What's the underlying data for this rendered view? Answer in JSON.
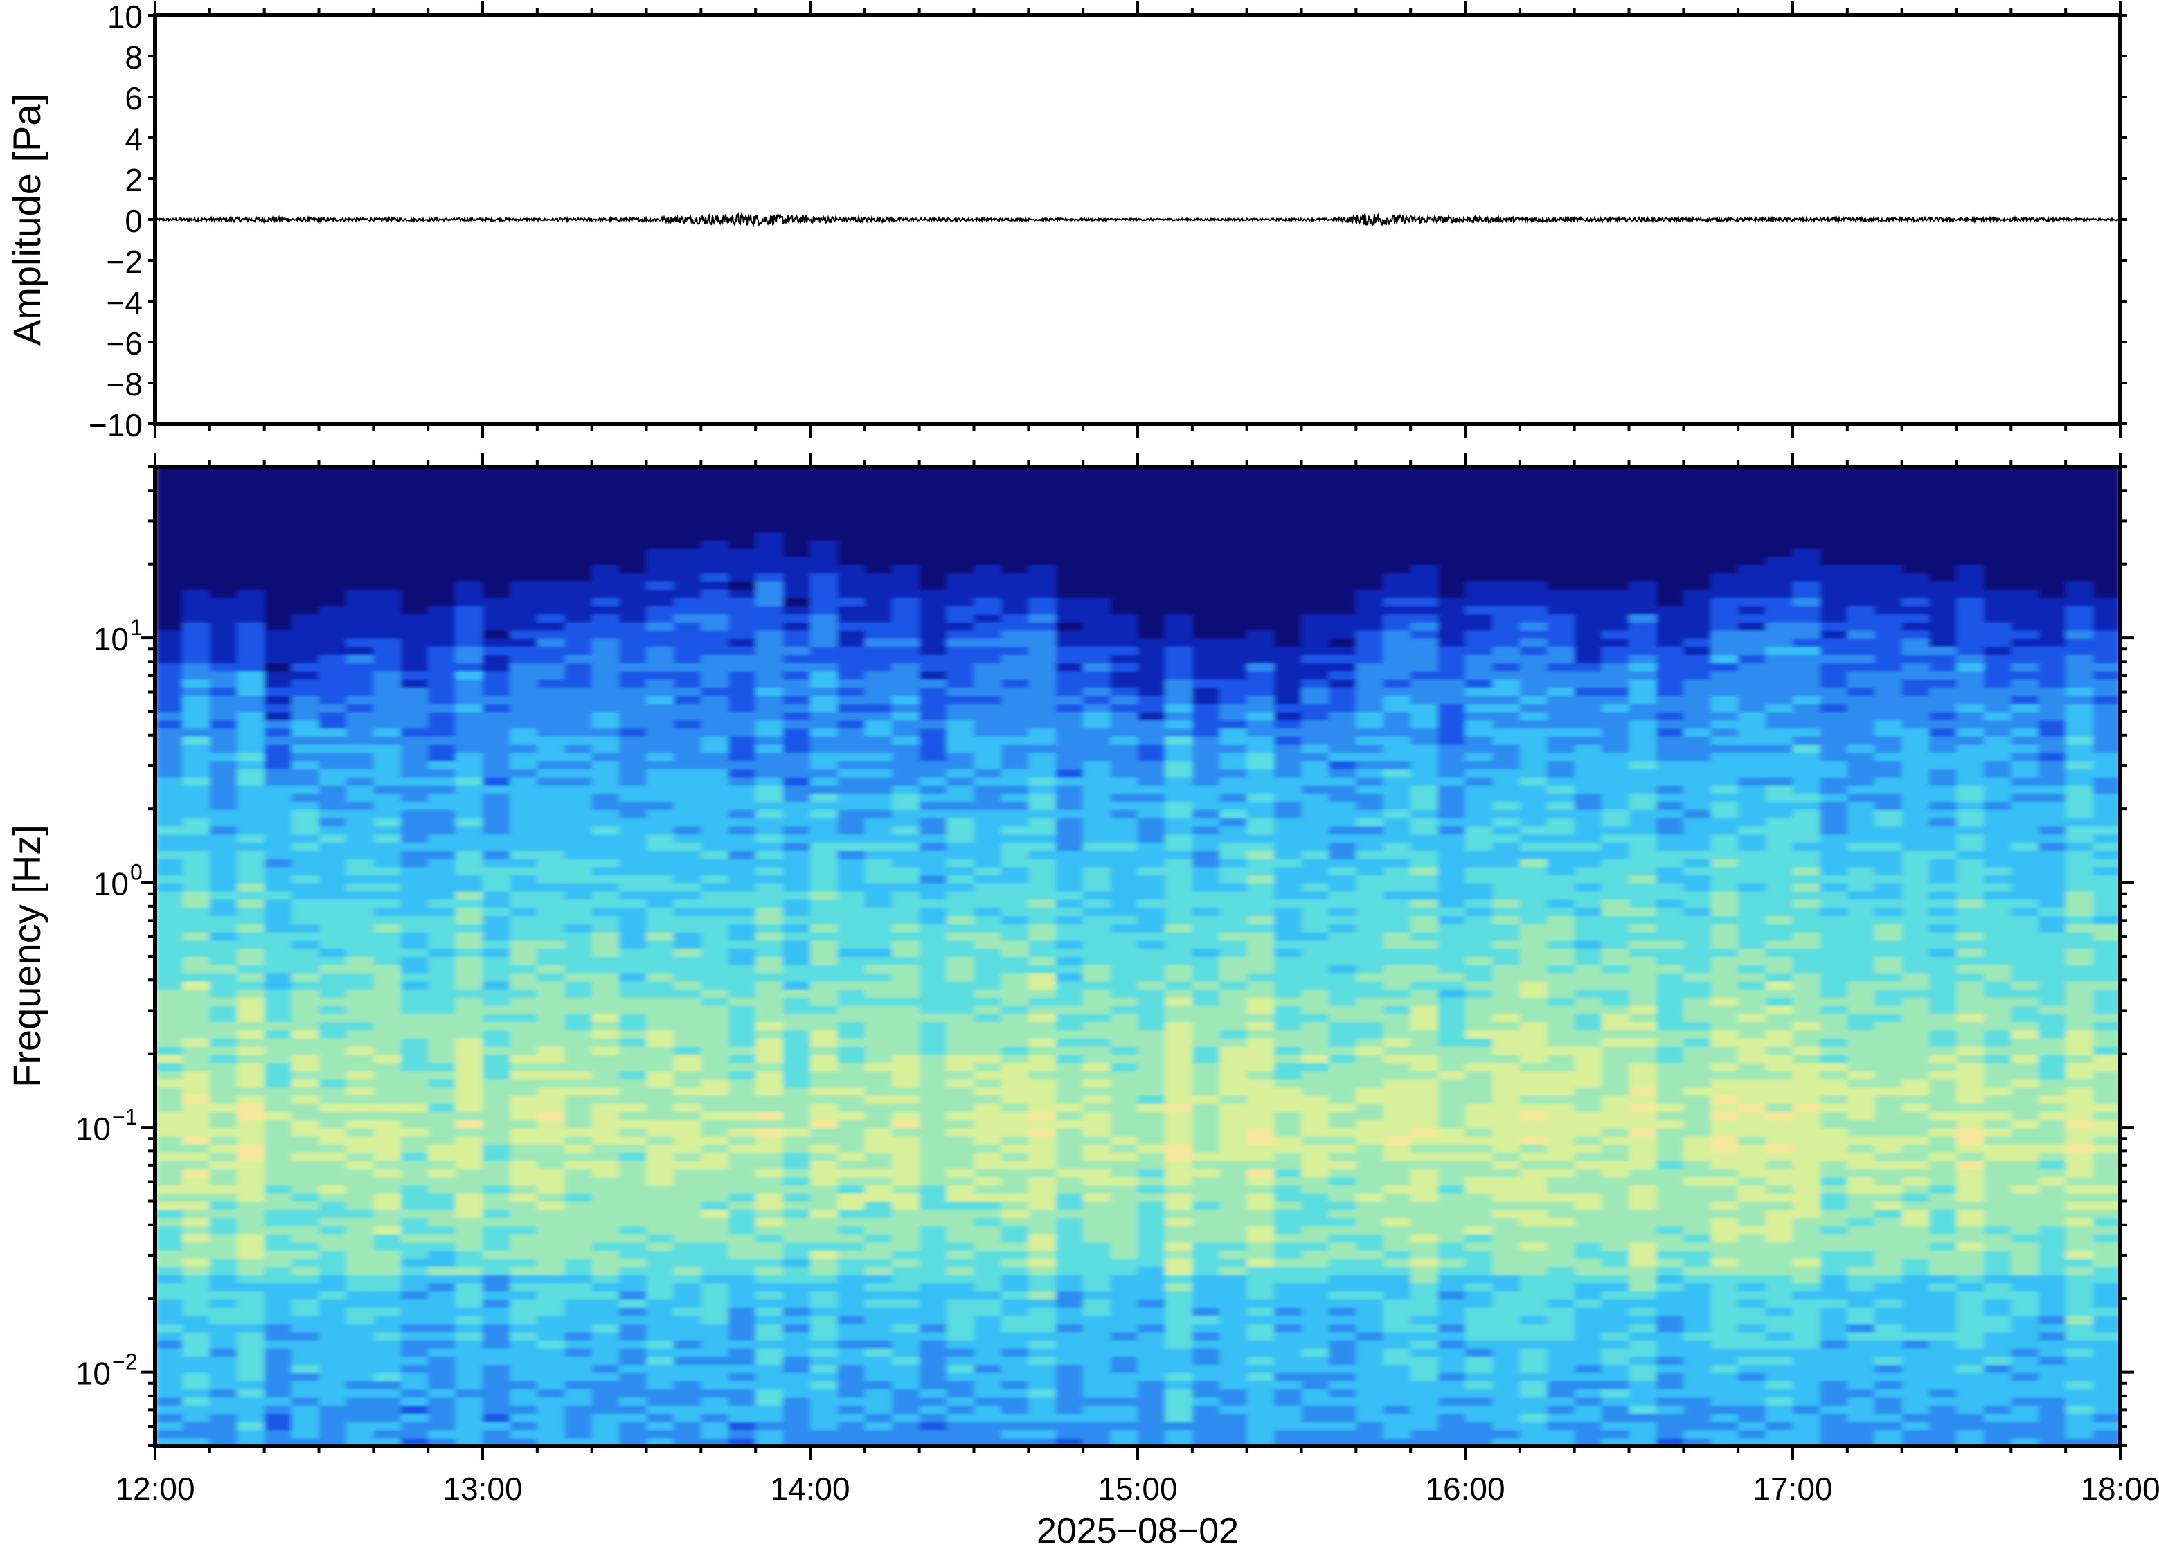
{
  "colors": {
    "frame": "#000000",
    "trace": "#000000",
    "colormap": [
      "#0a0a78",
      "#0b28b8",
      "#1a56e8",
      "#2d8cf0",
      "#38bff5",
      "#5cdde0",
      "#9ee8b8",
      "#d8f09a",
      "#f6e89a"
    ]
  },
  "chart_data": [
    {
      "type": "line",
      "panel": "waveform",
      "ylabel": "Amplitude [Pa]",
      "ylim": [
        -10,
        10
      ],
      "yticks": [
        10,
        8,
        6,
        4,
        2,
        0,
        -2,
        -4,
        -6,
        -8,
        -10
      ],
      "ytick_labels": [
        "10",
        "8",
        "6",
        "4",
        "2",
        "0",
        "−2",
        "−4",
        "−6",
        "−8",
        "−10"
      ],
      "xlim": [
        "12:00",
        "18:00"
      ],
      "series": [
        {
          "x_hours": [
            12.0,
            12.3,
            12.6,
            12.9,
            13.2,
            13.5,
            13.7,
            13.8,
            14.0,
            14.3,
            14.7,
            15.0,
            15.3,
            15.6,
            15.72,
            15.8,
            16.0,
            16.3,
            16.6,
            17.0,
            17.4,
            17.8,
            18.0
          ],
          "envelope": [
            0.05,
            0.12,
            0.08,
            0.07,
            0.06,
            0.09,
            0.25,
            0.3,
            0.18,
            0.08,
            0.06,
            0.05,
            0.05,
            0.06,
            0.35,
            0.2,
            0.15,
            0.1,
            0.09,
            0.08,
            0.1,
            0.07,
            0.05
          ]
        }
      ],
      "grid": false
    },
    {
      "type": "heatmap",
      "panel": "spectrogram",
      "ylabel": "Frequency [Hz]",
      "yscale": "log",
      "ylim": [
        0.005,
        50
      ],
      "yticks": [
        0.01,
        0.1,
        1,
        10
      ],
      "ytick_labels": [
        {
          "base": "10",
          "exp": "−2"
        },
        {
          "base": "10",
          "exp": "−1"
        },
        {
          "base": "10",
          "exp": "0"
        },
        {
          "base": "10",
          "exp": "1"
        }
      ],
      "xlim": [
        "12:00",
        "18:00"
      ],
      "xticks": [
        "12:00",
        "13:00",
        "14:00",
        "15:00",
        "16:00",
        "17:00",
        "18:00"
      ],
      "xlabel": "2025−08−02",
      "upper_cutoff_hz": {
        "x_hours": [
          12.0,
          12.2,
          12.4,
          12.6,
          12.8,
          13.0,
          13.2,
          13.4,
          13.6,
          13.8,
          14.0,
          14.2,
          14.4,
          14.6,
          14.8,
          15.0,
          15.2,
          15.4,
          15.6,
          15.8,
          16.0,
          16.2,
          16.4,
          16.6,
          16.8,
          17.0,
          17.2,
          17.4,
          17.6,
          17.8,
          18.0
        ],
        "values": [
          8,
          12,
          9,
          12,
          11,
          13,
          12,
          15,
          18,
          20,
          18,
          15,
          14,
          15,
          13,
          9,
          8,
          7,
          11,
          14,
          13,
          12,
          12,
          11,
          13,
          15,
          16,
          14,
          13,
          12,
          11
        ]
      },
      "peak_band_hz": [
        0.04,
        0.3
      ],
      "grid": false
    }
  ],
  "x_axis": {
    "ticks": [
      "12:00",
      "13:00",
      "14:00",
      "15:00",
      "16:00",
      "17:00",
      "18:00"
    ],
    "date_label": "2025−08−02"
  }
}
